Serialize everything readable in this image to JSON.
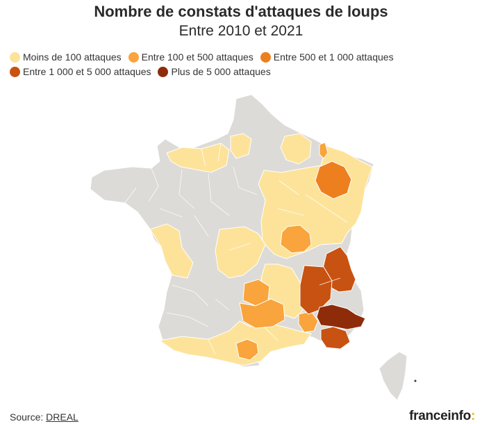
{
  "title": "Nombre de constats d'attaques de loups",
  "subtitle": "Entre 2010 et 2021",
  "legend": [
    {
      "label": "Moins de 100 attaques",
      "color": "#fde39a"
    },
    {
      "label": "Entre 100 et 500 attaques",
      "color": "#f9a43c"
    },
    {
      "label": "Entre 500 et 1 000 attaques",
      "color": "#ee7f1f"
    },
    {
      "label": "Entre 1 000 et 5 000 attaques",
      "color": "#c85211"
    },
    {
      "label": "Plus de 5 000 attaques",
      "color": "#8e2c0a"
    }
  ],
  "no_data_color": "#dcdbd8",
  "source": {
    "prefix": "Source:",
    "name": "DREAL"
  },
  "brand": {
    "name": "franceinfo",
    "suffix": ":"
  }
}
